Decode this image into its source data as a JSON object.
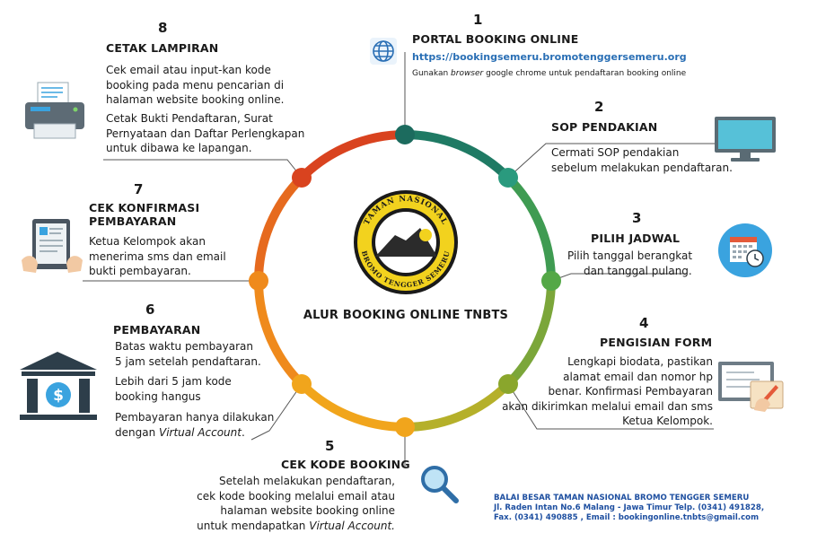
{
  "center_title": "ALUR BOOKING ONLINE TNBTS",
  "logo": {
    "top_text": "TAMAN NASIONAL",
    "bottom_text": "BROMO TENGGER SEMERU"
  },
  "steps": [
    {
      "number": "1",
      "title": "PORTAL BOOKING ONLINE",
      "url": "https://bookingsemeru.bromotenggersemeru.org",
      "hint_pre": "Gunakan ",
      "hint_em": "browser",
      "hint_post": " google chrome untuk pendaftaran booking online",
      "icon": "globe-icon"
    },
    {
      "number": "2",
      "title": "SOP PENDAKIAN",
      "lines": [
        "Cermati SOP pendakian",
        "sebelum melakukan pendaftaran."
      ],
      "icon": "monitor-icon"
    },
    {
      "number": "3",
      "title": "PILIH JADWAL",
      "lines": [
        "Pilih tanggal berangkat",
        "dan tanggal pulang."
      ],
      "icon": "calendar-icon"
    },
    {
      "number": "4",
      "title": "PENGISIAN FORM",
      "lines": [
        "Lengkapi biodata, pastikan",
        "alamat email dan nomor hp",
        "benar.  Konfirmasi Pembayaran",
        "akan dikirimkan melalui email dan sms",
        "Ketua Kelompok."
      ],
      "icon": "form-writing-icon"
    },
    {
      "number": "5",
      "title": "CEK KODE BOOKING",
      "lines": [
        "Setelah melakukan pendaftaran,",
        "cek kode booking melalui email atau",
        "halaman website booking online"
      ],
      "last_pre": "untuk mendapatkan ",
      "last_em": "Virtual Account.",
      "icon": "magnifier-icon"
    },
    {
      "number": "6",
      "title": "PEMBAYARAN",
      "p1": [
        "Batas waktu pembayaran",
        "5 jam setelah pendaftaran."
      ],
      "p2": [
        "Lebih dari 5 jam kode",
        "booking hangus"
      ],
      "p3_line1": "Pembayaran hanya dilakukan",
      "p3_pre": "dengan ",
      "p3_em": "Virtual Account",
      "p3_post": ".",
      "icon": "bank-icon"
    },
    {
      "number": "7",
      "title_lines": [
        "CEK KONFIRMASI",
        "PEMBAYARAN"
      ],
      "lines": [
        "Ketua Kelompok akan",
        "menerima sms dan email",
        "bukti pembayaran."
      ],
      "icon": "tablet-hands-icon"
    },
    {
      "number": "8",
      "title": "CETAK LAMPIRAN",
      "p1": [
        "Cek email atau input-kan kode",
        "booking pada menu pencarian di",
        "halaman website booking online."
      ],
      "p2": [
        "Cetak Bukti Pendaftaran, Surat",
        "Pernyataan dan Daftar Perlengkapan",
        "untuk dibawa ke lapangan."
      ],
      "icon": "printer-icon"
    }
  ],
  "footer": {
    "line1": "BALAI BESAR TAMAN NASIONAL BROMO TENGGER SEMERU",
    "line2": "Jl. Raden Intan No.6 Malang - Jawa Timur Telp. (0341) 491828,",
    "line3_pre": "Fax. (0341) 490885 , Email : ",
    "line3_email": "bookingonline.tnbts@gmail.com"
  },
  "colors": {
    "dark_teal": "#1c6b5e",
    "teal": "#2a9a7e",
    "green": "#54a847",
    "olive": "#94ad2e",
    "yellow_orange": "#f1a51c",
    "orange": "#ef8a1c",
    "dark_orange": "#e4571e",
    "red_orange": "#d9431f",
    "logo_yellow": "#f2d21e"
  }
}
